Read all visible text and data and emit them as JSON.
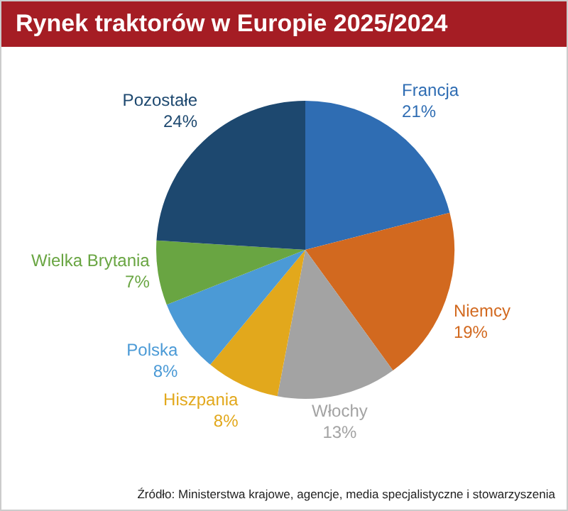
{
  "chart_data": {
    "type": "pie",
    "title": "Rynek traktorów w Europie 2025/2024",
    "categories": [
      "Francja",
      "Niemcy",
      "Włochy",
      "Hiszpania",
      "Polska",
      "Wielka Brytania",
      "Pozostałe"
    ],
    "values": [
      21,
      19,
      13,
      8,
      8,
      7,
      24
    ],
    "value_labels": [
      "21%",
      "19%",
      "13%",
      "8%",
      "8%",
      "7%",
      "24%"
    ],
    "colors": [
      "#2f6db3",
      "#d2691f",
      "#a3a3a3",
      "#e2a81c",
      "#4b9ad6",
      "#69a542",
      "#1d486f"
    ],
    "legend": false,
    "annotations": [
      "Źródło: Ministerstwa krajowe, agencje, media specjalistyczne i stowarzyszenia"
    ]
  }
}
